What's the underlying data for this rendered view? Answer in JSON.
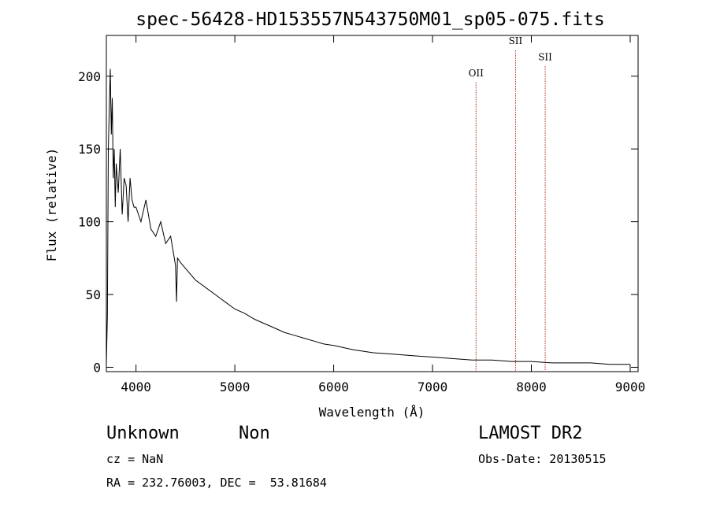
{
  "chart_data": {
    "type": "line",
    "title": "spec-56428-HD153557N543750M01_sp05-075.fits",
    "xlabel": "Wavelength (Å)",
    "ylabel": "Flux (relative)",
    "xlim": [
      3700,
      9080
    ],
    "ylim": [
      -3,
      228
    ],
    "x_ticks": [
      4000,
      5000,
      6000,
      7000,
      8000,
      9000
    ],
    "y_ticks": [
      0,
      50,
      100,
      150,
      200
    ],
    "grid": false,
    "series": [
      {
        "x": [
          3700,
          3710,
          3720,
          3730,
          3740,
          3750,
          3760,
          3770,
          3780,
          3790,
          3800,
          3820,
          3840,
          3860,
          3880,
          3900,
          3920,
          3940,
          3960,
          3980,
          4000,
          4050,
          4100,
          4150,
          4200,
          4250,
          4300,
          4350,
          4400,
          4410,
          4420,
          4450,
          4500,
          4600,
          4700,
          4800,
          4900,
          5000,
          5100,
          5200,
          5300,
          5400,
          5500,
          5600,
          5700,
          5800,
          5900,
          6000,
          6200,
          6400,
          6600,
          6800,
          7000,
          7200,
          7400,
          7600,
          7800,
          8000,
          8200,
          8400,
          8600,
          8800,
          9000
        ],
        "y": [
          2,
          35,
          150,
          180,
          205,
          160,
          185,
          130,
          150,
          110,
          140,
          120,
          150,
          105,
          130,
          125,
          100,
          130,
          115,
          110,
          110,
          100,
          115,
          95,
          90,
          100,
          85,
          90,
          70,
          45,
          75,
          72,
          68,
          60,
          55,
          50,
          45,
          40,
          37,
          33,
          30,
          27,
          24,
          22,
          20,
          18,
          16,
          15,
          12,
          10,
          9,
          8,
          7,
          6,
          5,
          5,
          4,
          4,
          3,
          3,
          3,
          2,
          2
        ]
      }
    ],
    "annotations": [
      {
        "label": "OII",
        "x": 7440,
        "y_label": 200
      },
      {
        "label": "SII",
        "x": 7840,
        "y_label": 222
      },
      {
        "label": "SII",
        "x": 8140,
        "y_label": 211
      }
    ]
  },
  "info": {
    "class": "Unknown",
    "subclass": "Non",
    "survey": "LAMOST DR2",
    "cz": "cz = NaN",
    "obs_date": "Obs-Date: 20130515",
    "coords": "RA = 232.76003, DEC =  53.81684"
  }
}
